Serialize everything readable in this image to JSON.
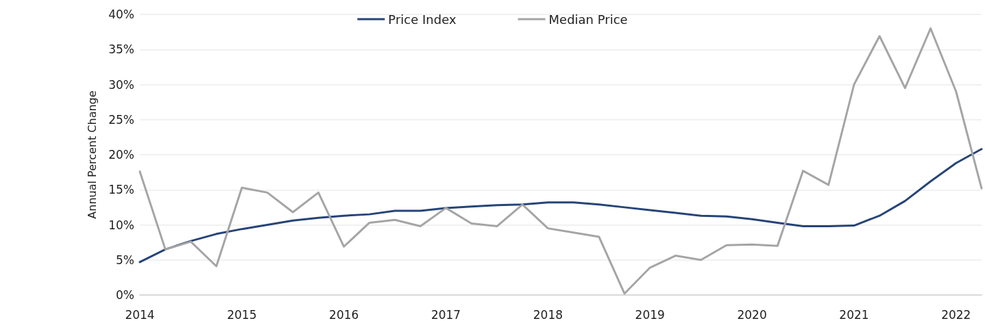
{
  "chart_data": {
    "type": "line",
    "ylabel": "Annual Percent Change",
    "categories": [
      "2014",
      null,
      null,
      null,
      "2015",
      null,
      null,
      null,
      "2016",
      null,
      null,
      null,
      "2017",
      null,
      null,
      null,
      "2018",
      null,
      null,
      null,
      "2019",
      null,
      null,
      null,
      "2020",
      null,
      null,
      null,
      "2021",
      null,
      null,
      null,
      "2022",
      null
    ],
    "series": [
      {
        "name": "Price Index",
        "color": "#264478",
        "values": [
          4.7,
          6.5,
          7.7,
          8.7,
          9.4,
          10.0,
          10.6,
          11.0,
          11.3,
          11.5,
          12.0,
          12.0,
          12.4,
          12.6,
          12.8,
          12.9,
          13.2,
          13.2,
          12.9,
          12.5,
          12.1,
          11.7,
          11.3,
          11.2,
          10.8,
          10.3,
          9.8,
          9.8,
          9.9,
          11.3,
          13.4,
          16.2,
          18.8,
          20.8
        ]
      },
      {
        "name": "Median Price",
        "color": "#a5a5a5",
        "values": [
          17.6,
          6.5,
          7.6,
          4.1,
          15.3,
          14.6,
          11.8,
          14.6,
          6.9,
          10.3,
          10.7,
          9.8,
          12.4,
          10.2,
          9.8,
          12.9,
          9.5,
          8.9,
          8.3,
          0.2,
          3.9,
          5.6,
          5.0,
          7.1,
          7.2,
          7.0,
          17.7,
          15.7,
          30.0,
          36.9,
          29.5,
          38.0,
          29.0,
          15.2
        ]
      }
    ],
    "ylim": [
      0,
      40
    ],
    "yticks": [
      {
        "value": 0,
        "label": "0%"
      },
      {
        "value": 5,
        "label": "5%"
      },
      {
        "value": 10,
        "label": "10%"
      },
      {
        "value": 15,
        "label": "15%"
      },
      {
        "value": 20,
        "label": "20%"
      },
      {
        "value": 25,
        "label": "25%"
      },
      {
        "value": 30,
        "label": "30%"
      },
      {
        "value": 35,
        "label": "35%"
      },
      {
        "value": 40,
        "label": "40%"
      }
    ],
    "grid": "y",
    "legend": "top",
    "marker": "none",
    "line_style": "solid"
  }
}
